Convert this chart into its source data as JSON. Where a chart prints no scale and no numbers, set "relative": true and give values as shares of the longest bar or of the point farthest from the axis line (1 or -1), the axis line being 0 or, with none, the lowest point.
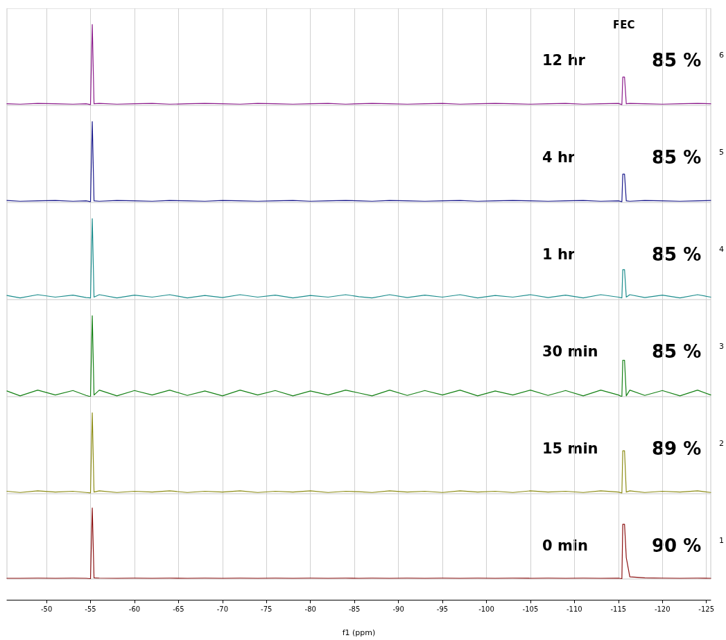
{
  "chart_data": [
    {
      "type": "line",
      "relative": true,
      "color": "#8b1a8b",
      "annotations": [
        "12 hr",
        "85 %",
        "6",
        "FEC"
      ],
      "xlim": [
        -45.5,
        -125.5
      ],
      "xticks": [
        -50,
        -55,
        -60,
        -65,
        -70,
        -75,
        -80,
        -85,
        -90,
        -95,
        -100,
        -105,
        -110,
        -115,
        -120,
        -125
      ],
      "grid": "x",
      "tick_labels": false,
      "x": [
        -45.5,
        -47,
        -49,
        -51,
        -53,
        -54.5,
        -55.0,
        -55.2,
        -55.4,
        -56,
        -58,
        -60,
        -62,
        -64,
        -66,
        -68,
        -70,
        -72,
        -74,
        -76,
        -78,
        -80,
        -82,
        -84,
        -85.5,
        -87,
        -89,
        -91,
        -93,
        -95,
        -97,
        -99,
        -101,
        -103,
        -105,
        -107,
        -109,
        -111,
        -113,
        -115,
        -115.4,
        -115.5,
        -115.7,
        -115.9,
        -116.3,
        -118,
        -120,
        -122,
        -124,
        -125.5
      ],
      "values": [
        0.02,
        0.015,
        0.025,
        0.02,
        0.015,
        0.02,
        0.01,
        1,
        0.02,
        0.025,
        0.015,
        0.02,
        0.025,
        0.015,
        0.02,
        0.025,
        0.02,
        0.015,
        0.025,
        0.02,
        0.015,
        0.02,
        0.025,
        0.015,
        0.02,
        0.025,
        0.02,
        0.015,
        0.02,
        0.025,
        0.015,
        0.02,
        0.025,
        0.02,
        0.015,
        0.02,
        0.025,
        0.015,
        0.02,
        0.025,
        0.01,
        0.35,
        0.35,
        0.02,
        0.025,
        0.02,
        0.015,
        0.02,
        0.025,
        0.02
      ]
    },
    {
      "type": "line",
      "relative": true,
      "color": "#1a1a8c",
      "annotations": [
        "4 hr",
        "85 %",
        "5"
      ],
      "xlim": [
        -45.5,
        -125.5
      ],
      "xticks": [
        -50,
        -55,
        -60,
        -65,
        -70,
        -75,
        -80,
        -85,
        -90,
        -95,
        -100,
        -105,
        -110,
        -115,
        -120,
        -125
      ],
      "grid": "x",
      "tick_labels": false,
      "x": [
        -45.5,
        -47,
        -49,
        -51,
        -53,
        -54.5,
        -55.0,
        -55.2,
        -55.4,
        -56,
        -58,
        -60,
        -62,
        -64,
        -66,
        -68,
        -70,
        -72,
        -74,
        -76,
        -78,
        -80,
        -82,
        -84,
        -85.5,
        -87,
        -89,
        -91,
        -93,
        -95,
        -97,
        -99,
        -101,
        -103,
        -105,
        -107,
        -109,
        -111,
        -113,
        -115,
        -115.4,
        -115.5,
        -115.7,
        -115.9,
        -116.3,
        -118,
        -120,
        -122,
        -124,
        -125.5
      ],
      "values": [
        0.025,
        0.015,
        0.02,
        0.025,
        0.015,
        0.02,
        0.01,
        1,
        0.02,
        0.015,
        0.025,
        0.02,
        0.015,
        0.025,
        0.02,
        0.015,
        0.025,
        0.02,
        0.015,
        0.02,
        0.025,
        0.015,
        0.02,
        0.025,
        0.02,
        0.015,
        0.025,
        0.02,
        0.015,
        0.02,
        0.025,
        0.015,
        0.02,
        0.025,
        0.02,
        0.015,
        0.02,
        0.025,
        0.015,
        0.02,
        0.01,
        0.35,
        0.35,
        0.02,
        0.015,
        0.025,
        0.02,
        0.015,
        0.02,
        0.025
      ]
    },
    {
      "type": "line",
      "relative": true,
      "color": "#1a8c8c",
      "annotations": [
        "1 hr",
        "85 %",
        "4"
      ],
      "xlim": [
        -45.5,
        -125.5
      ],
      "xticks": [
        -50,
        -55,
        -60,
        -65,
        -70,
        -75,
        -80,
        -85,
        -90,
        -95,
        -100,
        -105,
        -110,
        -115,
        -120,
        -125
      ],
      "grid": "x",
      "tick_labels": false,
      "x": [
        -45.5,
        -47,
        -49,
        -51,
        -53,
        -54.5,
        -55.0,
        -55.2,
        -55.4,
        -56,
        -58,
        -60,
        -62,
        -64,
        -66,
        -68,
        -70,
        -72,
        -74,
        -76,
        -78,
        -80,
        -82,
        -84,
        -85.5,
        -87,
        -89,
        -91,
        -93,
        -95,
        -97,
        -99,
        -101,
        -103,
        -105,
        -107,
        -109,
        -111,
        -113,
        -115,
        -115.4,
        -115.5,
        -115.7,
        -115.9,
        -116.3,
        -118,
        -120,
        -122,
        -124,
        -125.5
      ],
      "values": [
        0.05,
        0.02,
        0.06,
        0.03,
        0.055,
        0.025,
        0.02,
        1,
        0.03,
        0.06,
        0.02,
        0.055,
        0.03,
        0.06,
        0.02,
        0.05,
        0.025,
        0.06,
        0.03,
        0.055,
        0.02,
        0.05,
        0.03,
        0.06,
        0.035,
        0.02,
        0.06,
        0.025,
        0.055,
        0.03,
        0.06,
        0.02,
        0.05,
        0.03,
        0.06,
        0.025,
        0.055,
        0.02,
        0.06,
        0.03,
        0.02,
        0.37,
        0.37,
        0.03,
        0.06,
        0.025,
        0.055,
        0.02,
        0.06,
        0.03
      ]
    },
    {
      "type": "line",
      "relative": true,
      "color": "#138013",
      "annotations": [
        "30 min",
        "85 %",
        "3"
      ],
      "xlim": [
        -45.5,
        -125.5
      ],
      "xticks": [
        -50,
        -55,
        -60,
        -65,
        -70,
        -75,
        -80,
        -85,
        -90,
        -95,
        -100,
        -105,
        -110,
        -115,
        -120,
        -125
      ],
      "grid": "x",
      "tick_labels": false,
      "x": [
        -45.5,
        -47,
        -49,
        -51,
        -53,
        -54.5,
        -55.0,
        -55.2,
        -55.4,
        -56,
        -58,
        -60,
        -62,
        -64,
        -66,
        -68,
        -70,
        -72,
        -74,
        -76,
        -78,
        -80,
        -82,
        -84,
        -85.5,
        -87,
        -89,
        -91,
        -93,
        -95,
        -97,
        -99,
        -101,
        -103,
        -105,
        -107,
        -109,
        -111,
        -113,
        -115,
        -115.4,
        -115.5,
        -115.7,
        -115.9,
        -116.3,
        -118,
        -120,
        -122,
        -124,
        -125.5
      ],
      "values": [
        0.07,
        0.01,
        0.08,
        0.02,
        0.075,
        0.015,
        0.0,
        1,
        0.02,
        0.08,
        0.01,
        0.075,
        0.02,
        0.08,
        0.015,
        0.07,
        0.01,
        0.08,
        0.02,
        0.075,
        0.01,
        0.07,
        0.02,
        0.08,
        0.045,
        0.01,
        0.08,
        0.015,
        0.075,
        0.02,
        0.08,
        0.01,
        0.07,
        0.02,
        0.08,
        0.015,
        0.075,
        0.01,
        0.08,
        0.02,
        0.0,
        0.45,
        0.45,
        0.01,
        0.08,
        0.015,
        0.075,
        0.01,
        0.08,
        0.02
      ]
    },
    {
      "type": "line",
      "relative": true,
      "color": "#8c8c14",
      "annotations": [
        "15 min",
        "89 %",
        "2"
      ],
      "xlim": [
        -45.5,
        -125.5
      ],
      "xticks": [
        -50,
        -55,
        -60,
        -65,
        -70,
        -75,
        -80,
        -85,
        -90,
        -95,
        -100,
        -105,
        -110,
        -115,
        -120,
        -125
      ],
      "grid": "x",
      "tick_labels": false,
      "x": [
        -45.5,
        -47,
        -49,
        -51,
        -53,
        -54.5,
        -55.0,
        -55.2,
        -55.4,
        -56,
        -58,
        -60,
        -62,
        -64,
        -66,
        -68,
        -70,
        -72,
        -74,
        -76,
        -78,
        -80,
        -82,
        -84,
        -85.5,
        -87,
        -89,
        -91,
        -93,
        -95,
        -97,
        -99,
        -101,
        -103,
        -105,
        -107,
        -109,
        -111,
        -113,
        -115,
        -115.4,
        -115.5,
        -115.7,
        -115.9,
        -116.3,
        -118,
        -120,
        -122,
        -124,
        -125.5
      ],
      "values": [
        0.03,
        0.015,
        0.035,
        0.02,
        0.03,
        0.015,
        0.01,
        1,
        0.02,
        0.035,
        0.015,
        0.03,
        0.02,
        0.035,
        0.015,
        0.03,
        0.02,
        0.035,
        0.015,
        0.03,
        0.02,
        0.035,
        0.015,
        0.03,
        0.025,
        0.015,
        0.035,
        0.02,
        0.03,
        0.015,
        0.035,
        0.02,
        0.03,
        0.015,
        0.035,
        0.02,
        0.03,
        0.015,
        0.035,
        0.02,
        0.01,
        0.53,
        0.53,
        0.02,
        0.035,
        0.015,
        0.03,
        0.02,
        0.035,
        0.015
      ]
    },
    {
      "type": "line",
      "relative": true,
      "color": "#8b1010",
      "annotations": [
        "0 min",
        "90 %",
        "1"
      ],
      "xlim": [
        -45.5,
        -125.5
      ],
      "xticks": [
        -50,
        -55,
        -60,
        -65,
        -70,
        -75,
        -80,
        -85,
        -90,
        -95,
        -100,
        -105,
        -110,
        -115,
        -120,
        -125
      ],
      "grid": "x",
      "tick_labels": "x",
      "xlabel": "f1 (ppm)",
      "x": [
        -45.5,
        -47,
        -49,
        -51,
        -53,
        -54.5,
        -55.0,
        -55.2,
        -55.4,
        -56,
        -58,
        -60,
        -62,
        -64,
        -66,
        -68,
        -70,
        -72,
        -74,
        -76,
        -78,
        -80,
        -82,
        -84,
        -85.5,
        -87,
        -89,
        -91,
        -93,
        -95,
        -97,
        -99,
        -101,
        -103,
        -105,
        -107,
        -109,
        -111,
        -113,
        -115,
        -115.4,
        -115.5,
        -115.7,
        -115.9,
        -116.3,
        -118,
        -120,
        -122,
        -124,
        -125.5
      ],
      "values": [
        0.01,
        0.01,
        0.012,
        0.01,
        0.012,
        0.01,
        0.005,
        1,
        0.015,
        0.012,
        0.01,
        0.012,
        0.01,
        0.012,
        0.01,
        0.012,
        0.01,
        0.012,
        0.01,
        0.012,
        0.01,
        0.012,
        0.01,
        0.012,
        0.01,
        0.012,
        0.01,
        0.012,
        0.01,
        0.012,
        0.01,
        0.012,
        0.01,
        0.012,
        0.01,
        0.012,
        0.01,
        0.012,
        0.01,
        0.012,
        0.005,
        0.77,
        0.77,
        0.3,
        0.03,
        0.015,
        0.012,
        0.01,
        0.012,
        0.01
      ]
    }
  ]
}
